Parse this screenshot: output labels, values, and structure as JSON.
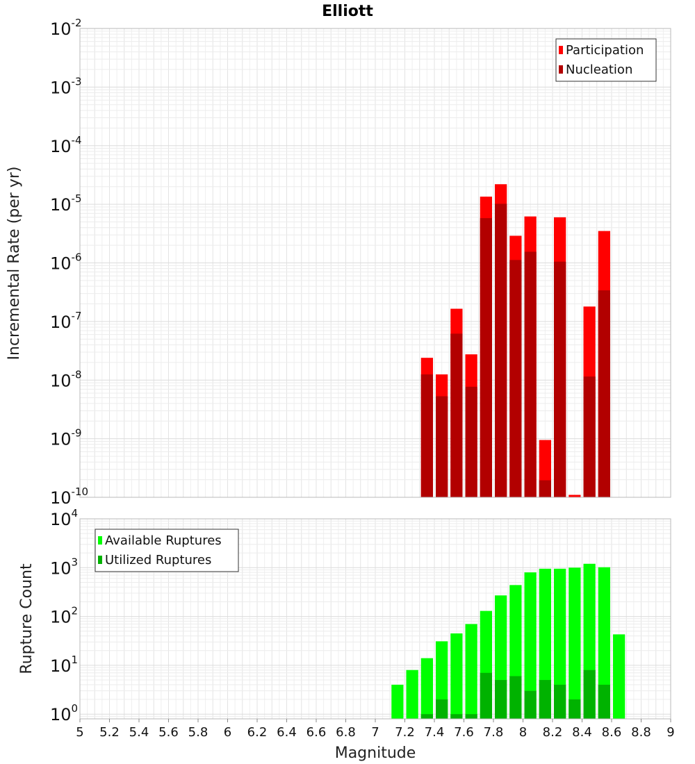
{
  "chart_data": [
    {
      "type": "bar",
      "title": "Elliott",
      "xlabel": "",
      "ylabel": "Incremental Rate (per yr)",
      "y_scale": "log",
      "ylim": [
        1e-10,
        0.01
      ],
      "xlim": [
        5,
        9
      ],
      "y_ticks": [
        {
          "base": "10",
          "exp": "-2"
        },
        {
          "base": "10",
          "exp": "-3"
        },
        {
          "base": "10",
          "exp": "-4"
        },
        {
          "base": "10",
          "exp": "-5"
        },
        {
          "base": "10",
          "exp": "-6"
        },
        {
          "base": "10",
          "exp": "-7"
        },
        {
          "base": "10",
          "exp": "-8"
        },
        {
          "base": "10",
          "exp": "-9"
        },
        {
          "base": "10",
          "exp": "-10"
        }
      ],
      "legend_position": "top-right",
      "series": [
        {
          "name": "Participation",
          "color": "#ff0000",
          "x": [
            7.35,
            7.45,
            7.55,
            7.65,
            7.75,
            7.85,
            7.95,
            8.05,
            8.15,
            8.25,
            8.35,
            8.45,
            8.55
          ],
          "values": [
            2.4e-08,
            1.25e-08,
            1.65e-07,
            2.75e-08,
            1.35e-05,
            2.2e-05,
            2.9e-06,
            6.2e-06,
            9.5e-10,
            6e-06,
            1.1e-10,
            1.8e-07,
            3.5e-06
          ]
        },
        {
          "name": "Nucleation",
          "color": "#b20000",
          "x": [
            7.35,
            7.45,
            7.55,
            7.65,
            7.75,
            7.85,
            7.95,
            8.05,
            8.15,
            8.25,
            8.35,
            8.45,
            8.55
          ],
          "values": [
            1.25e-08,
            5.3e-09,
            6.2e-08,
            7.7e-09,
            5.8e-06,
            1.02e-05,
            1.12e-06,
            1.55e-06,
            1.95e-10,
            1.05e-06,
            1e-10,
            1.15e-08,
            3.4e-07
          ]
        }
      ]
    },
    {
      "type": "bar",
      "title": "",
      "xlabel": "Magnitude",
      "ylabel": "Rupture Count",
      "y_scale": "log",
      "ylim": [
        0.8,
        10000
      ],
      "xlim": [
        5,
        9
      ],
      "y_ticks": [
        {
          "base": "10",
          "exp": "4"
        },
        {
          "base": "10",
          "exp": "3"
        },
        {
          "base": "10",
          "exp": "2"
        },
        {
          "base": "10",
          "exp": "1"
        },
        {
          "base": "10",
          "exp": "0"
        }
      ],
      "x_tick_labels": [
        "5",
        "5.2",
        "5.4",
        "5.6",
        "5.8",
        "6",
        "6.2",
        "6.4",
        "6.6",
        "6.8",
        "7",
        "7.2",
        "7.4",
        "7.6",
        "7.8",
        "8",
        "8.2",
        "8.4",
        "8.6",
        "8.8",
        "9"
      ],
      "legend_position": "top-left",
      "series": [
        {
          "name": "Available Ruptures",
          "color": "#00ff00",
          "x": [
            7.15,
            7.25,
            7.35,
            7.45,
            7.55,
            7.65,
            7.75,
            7.85,
            7.95,
            8.05,
            8.15,
            8.25,
            8.35,
            8.45,
            8.55,
            8.65
          ],
          "values": [
            4,
            8,
            14,
            31,
            45,
            70,
            130,
            270,
            440,
            800,
            950,
            950,
            1000,
            1200,
            1020,
            43
          ]
        },
        {
          "name": "Utilized Ruptures",
          "color": "#00b200",
          "x": [
            7.35,
            7.45,
            7.55,
            7.65,
            7.75,
            7.85,
            7.95,
            8.05,
            8.15,
            8.25,
            8.35,
            8.45,
            8.55
          ],
          "values": [
            1,
            2,
            1,
            1,
            7,
            5,
            6,
            3,
            5,
            4,
            2,
            8,
            4
          ]
        }
      ]
    }
  ]
}
